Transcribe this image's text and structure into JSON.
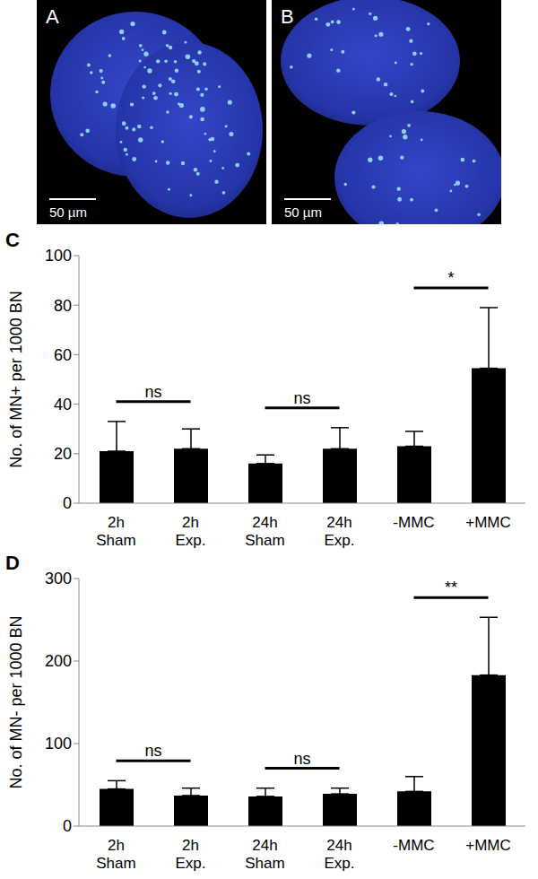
{
  "images": [
    {
      "label": "A",
      "scale_bar": "50 µm"
    },
    {
      "label": "B",
      "scale_bar": "50 µm"
    }
  ],
  "chart_data": [
    {
      "type": "bar",
      "panel": "C",
      "y_label": "No. of MN+ per 1000 BN",
      "categories": [
        "2h Sham",
        "2h Exp.",
        "24h Sham",
        "24h Exp.",
        "-MMC",
        "+MMC"
      ],
      "values": [
        21,
        22,
        16,
        22,
        23,
        54.5
      ],
      "errors": [
        12,
        8,
        3.5,
        8.5,
        6,
        24.5
      ],
      "color": "#000000",
      "ylim": [
        0,
        100
      ],
      "yticks": [
        0,
        20,
        40,
        60,
        80,
        100
      ],
      "annotations": [
        {
          "between": [
            "2h Sham",
            "2h Exp."
          ],
          "text": "ns"
        },
        {
          "between": [
            "24h Sham",
            "24h Exp."
          ],
          "text": "ns"
        },
        {
          "between": [
            "-MMC",
            "+MMC"
          ],
          "text": "*"
        }
      ]
    },
    {
      "type": "bar",
      "panel": "D",
      "y_label": "No. of MN- per 1000 BN",
      "categories": [
        "2h Sham",
        "2h Exp.",
        "24h Sham",
        "24h Exp.",
        "-MMC",
        "+MMC"
      ],
      "values": [
        45,
        37,
        36,
        39,
        42,
        183
      ],
      "errors": [
        10,
        9,
        10,
        7,
        18,
        70
      ],
      "color": "#000000",
      "ylim": [
        0,
        300
      ],
      "yticks": [
        0,
        100,
        200,
        300
      ],
      "annotations": [
        {
          "between": [
            "2h Sham",
            "2h Exp."
          ],
          "text": "ns"
        },
        {
          "between": [
            "24h Sham",
            "24h Exp."
          ],
          "text": "ns"
        },
        {
          "between": [
            "-MMC",
            "+MMC"
          ],
          "text": "**"
        }
      ]
    }
  ]
}
